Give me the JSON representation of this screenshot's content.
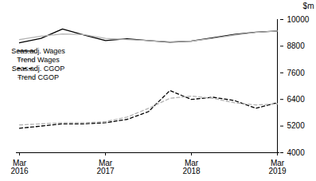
{
  "chart_data": {
    "type": "line",
    "categories": [
      "Mar 2016",
      null,
      null,
      null,
      "Mar 2017",
      null,
      null,
      null,
      "Mar 2018",
      null,
      null,
      null,
      "Mar 2019"
    ],
    "series": [
      {
        "name": "Seas.adj. Wages",
        "color": "#000000",
        "line_style": "solid",
        "values": [
          8950,
          9150,
          9570,
          9300,
          9050,
          9130,
          9050,
          8980,
          9030,
          9180,
          9330,
          9430,
          9480
        ]
      },
      {
        "name": "Trend Wages",
        "color": "#b3b3b3",
        "line_style": "solid",
        "values": [
          9100,
          9250,
          9350,
          9320,
          9150,
          9100,
          9050,
          9000,
          9030,
          9150,
          9300,
          9420,
          9480
        ]
      },
      {
        "name": "Seas.adj. CGOP",
        "color": "#000000",
        "line_style": "dashed",
        "values": [
          5100,
          5200,
          5300,
          5300,
          5350,
          5500,
          5850,
          6800,
          6400,
          6500,
          6350,
          6000,
          6250
        ]
      },
      {
        "name": "Trend CGOP",
        "color": "#b3b3b3",
        "line_style": "dashed",
        "values": [
          5250,
          5300,
          5350,
          5350,
          5400,
          5600,
          6000,
          6450,
          6550,
          6450,
          6250,
          6150,
          6200
        ]
      }
    ],
    "y_label": "$m",
    "ylim": [
      4000,
      10000
    ],
    "yticks": [
      4000,
      5200,
      6400,
      7600,
      8800,
      10000
    ],
    "grid": false,
    "legend": "left"
  }
}
